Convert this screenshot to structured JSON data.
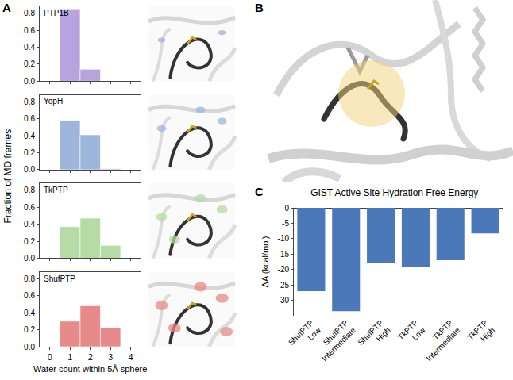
{
  "figure": {
    "panel_letters": [
      "A",
      "B",
      "C"
    ],
    "shared_xlabel": "Water count within 5Å sphere",
    "shared_ylabel": "Fraction of MD frames"
  },
  "chart_data": [
    {
      "type": "bar",
      "title": "PTP1B",
      "x": [
        0,
        1,
        2,
        3,
        4
      ],
      "values": [
        0,
        0.85,
        0.14,
        0,
        0
      ],
      "color": "#b9a3de",
      "xlim": [
        -0.5,
        4.5
      ],
      "xticks": [
        0,
        1,
        2,
        3,
        4
      ],
      "ylim": [
        0,
        0.88
      ],
      "yticks": [
        {
          "value": 0,
          "label": "0.0"
        },
        {
          "value": 0.2,
          "label": "0.2"
        },
        {
          "value": 0.4,
          "label": "0.4"
        },
        {
          "value": 0.6,
          "label": "0.6"
        },
        {
          "value": 0.8,
          "label": "0.8"
        }
      ],
      "tick_labels": "y"
    },
    {
      "type": "bar",
      "title": "YopH",
      "x": [
        0,
        1,
        2,
        3,
        4
      ],
      "values": [
        0,
        0.58,
        0.41,
        0.01,
        0
      ],
      "color": "#9fb6dc",
      "xlim": [
        -0.5,
        4.5
      ],
      "xticks": [
        0,
        1,
        2,
        3,
        4
      ],
      "ylim": [
        0,
        0.88
      ],
      "yticks": [
        {
          "value": 0,
          "label": "0.0"
        },
        {
          "value": 0.2,
          "label": "0.2"
        },
        {
          "value": 0.4,
          "label": "0.4"
        },
        {
          "value": 0.6,
          "label": "0.6"
        },
        {
          "value": 0.8,
          "label": "0.8"
        }
      ],
      "tick_labels": "y"
    },
    {
      "type": "bar",
      "title": "TkPTP",
      "x": [
        0,
        1,
        2,
        3,
        4
      ],
      "values": [
        0,
        0.37,
        0.47,
        0.15,
        0
      ],
      "color": "#b7dba4",
      "xlim": [
        -0.5,
        4.5
      ],
      "xticks": [
        0,
        1,
        2,
        3,
        4
      ],
      "ylim": [
        0,
        0.88
      ],
      "yticks": [
        {
          "value": 0,
          "label": "0.0"
        },
        {
          "value": 0.2,
          "label": "0.2"
        },
        {
          "value": 0.4,
          "label": "0.4"
        },
        {
          "value": 0.6,
          "label": "0.6"
        },
        {
          "value": 0.8,
          "label": "0.8"
        }
      ],
      "tick_labels": "y"
    },
    {
      "type": "bar",
      "title": "ShufPTP",
      "x": [
        0,
        1,
        2,
        3,
        4
      ],
      "values": [
        0,
        0.3,
        0.48,
        0.22,
        0
      ],
      "color": "#e88a8a",
      "xlim": [
        -0.5,
        4.5
      ],
      "xticks": [
        0,
        1,
        2,
        3,
        4
      ],
      "ylim": [
        0,
        0.88
      ],
      "yticks": [
        {
          "value": 0,
          "label": "0.0"
        },
        {
          "value": 0.2,
          "label": "0.2"
        },
        {
          "value": 0.4,
          "label": "0.4"
        },
        {
          "value": 0.6,
          "label": "0.6"
        },
        {
          "value": 0.8,
          "label": "0.8"
        }
      ]
    },
    {
      "type": "bar",
      "title": "GIST Active Site Hydration Free Energy",
      "categories": [
        "ShufPTP Low",
        "ShufPTP Intermediate",
        "ShufPTP High",
        "TkPTP Low",
        "TkPTP Intermediate",
        "TkPTP High"
      ],
      "values": [
        -27,
        -33.5,
        -18,
        -19.3,
        -17,
        -8.3
      ],
      "color": "#4a78b8",
      "ylabel": "ΔA (kcal/mol)",
      "ylim": [
        -35,
        0
      ],
      "yticks": [
        -30,
        -25,
        -20,
        -15,
        -10,
        -5,
        0
      ]
    }
  ]
}
